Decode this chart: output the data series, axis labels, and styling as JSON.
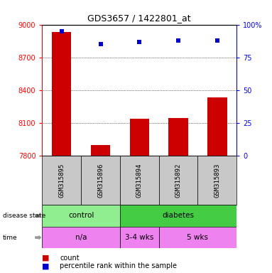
{
  "title": "GDS3657 / 1422801_at",
  "samples": [
    "GSM315895",
    "GSM315896",
    "GSM315894",
    "GSM315892",
    "GSM315893"
  ],
  "counts": [
    8930,
    7900,
    8140,
    8145,
    8330
  ],
  "percentiles": [
    95,
    85,
    87,
    88,
    88
  ],
  "ylim_left": [
    7800,
    9000
  ],
  "ylim_right": [
    0,
    100
  ],
  "yticks_left": [
    7800,
    8100,
    8400,
    8700,
    9000
  ],
  "yticks_right": [
    0,
    25,
    50,
    75,
    100
  ],
  "bar_color": "#cc0000",
  "dot_color": "#0000cc",
  "disease_state_control": [
    0,
    2
  ],
  "disease_state_diabetes": [
    2,
    5
  ],
  "time_na": [
    0,
    2
  ],
  "time_34wks": [
    2,
    3
  ],
  "time_5wks": [
    3,
    5
  ],
  "control_color": "#90ee90",
  "diabetes_color": "#44cc44",
  "time_color": "#ee82ee",
  "label_bg": "#c8c8c8",
  "legend_count_label": "count",
  "legend_pct_label": "percentile rank within the sample"
}
